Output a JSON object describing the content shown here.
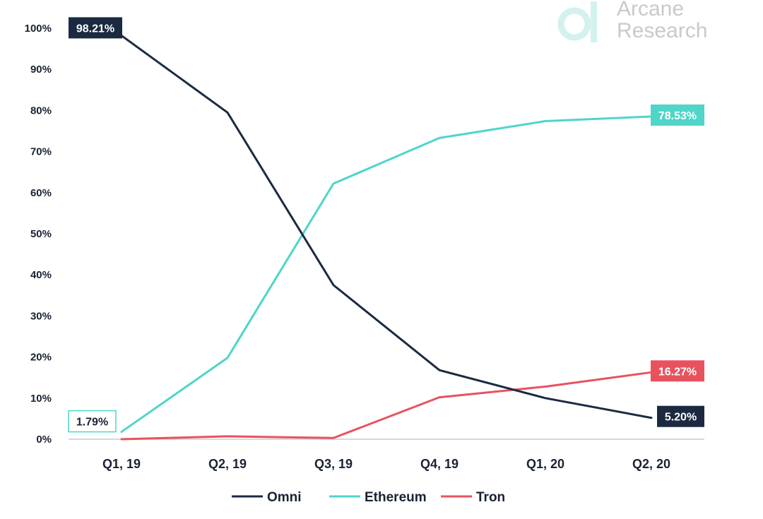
{
  "brand": {
    "line1": "Arcane",
    "line2": "Research",
    "logo_icon": "arcane-research-logo"
  },
  "colors": {
    "Omni": "#1b2a40",
    "Ethereum": "#4fd5c9",
    "Tron": "#e8525f",
    "axis": "#c8ccd0",
    "text": "#1a2233",
    "logo": "#c7cacd",
    "logo_mark": "#d3f2ee"
  },
  "chart_data": {
    "type": "line",
    "title": "",
    "xlabel": "",
    "ylabel": "",
    "categories": [
      "Q1, 19",
      "Q2, 19",
      "Q3, 19",
      "Q4, 19",
      "Q1, 20",
      "Q2, 20"
    ],
    "ylim": [
      0,
      100
    ],
    "y_ticks": [
      "0%",
      "10%",
      "20%",
      "30%",
      "40%",
      "50%",
      "60%",
      "70%",
      "80%",
      "90%",
      "100%"
    ],
    "grid": false,
    "legend_position": "bottom",
    "series": [
      {
        "name": "Omni",
        "values": [
          98.21,
          79.5,
          37.5,
          16.8,
          10.0,
          5.2
        ]
      },
      {
        "name": "Ethereum",
        "values": [
          1.79,
          19.8,
          62.2,
          73.3,
          77.4,
          78.53
        ]
      },
      {
        "name": "Tron",
        "values": [
          0,
          0.7,
          0.3,
          10.2,
          12.8,
          16.27
        ]
      }
    ],
    "annotations": [
      {
        "series": "Omni",
        "index": 0,
        "text": "98.21%",
        "style": "filled",
        "side": "left"
      },
      {
        "series": "Ethereum",
        "index": 0,
        "text": "1.79%",
        "style": "outline",
        "side": "left"
      },
      {
        "series": "Ethereum",
        "index": 5,
        "text": "78.53%",
        "style": "filled",
        "side": "right"
      },
      {
        "series": "Tron",
        "index": 5,
        "text": "16.27%",
        "style": "filled",
        "side": "right"
      },
      {
        "series": "Omni",
        "index": 5,
        "text": "5.20%",
        "style": "filled",
        "side": "right"
      }
    ]
  }
}
